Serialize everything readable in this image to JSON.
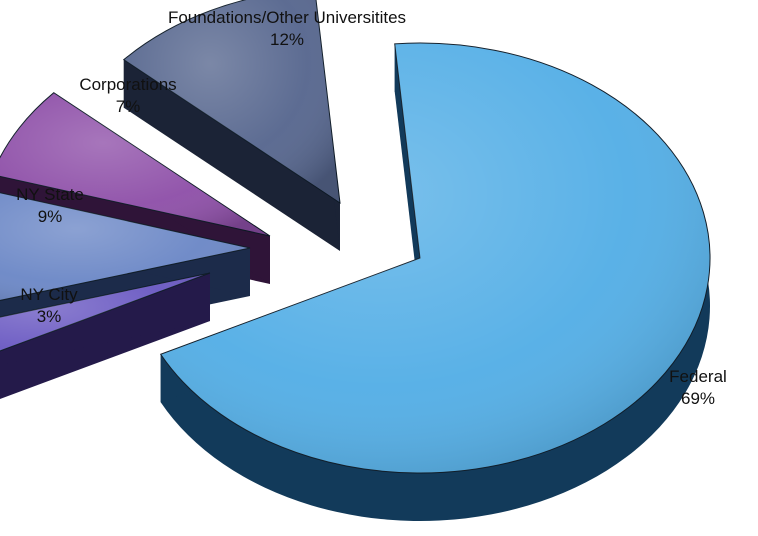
{
  "chart_data": {
    "type": "pie",
    "style": "3d-exploded",
    "slices": [
      {
        "label": "Federal",
        "percent_label": "69%",
        "value": 69,
        "color": "#53aee6",
        "side_color": "#123a5a"
      },
      {
        "label": "NY City",
        "percent_label": "3%",
        "value": 3,
        "color": "#6a59c2",
        "side_color": "#241a4a"
      },
      {
        "label": "NY State",
        "percent_label": "9%",
        "value": 9,
        "color": "#6b87c6",
        "side_color": "#1c2b4a"
      },
      {
        "label": "Corporations",
        "percent_label": "7%",
        "value": 7,
        "color": "#8e4fa8",
        "side_color": "#2f1438"
      },
      {
        "label": "Foundations/Other Universitites",
        "percent_label": "12%",
        "value": 12,
        "color": "#56668e",
        "side_color": "#1b2336"
      }
    ]
  }
}
